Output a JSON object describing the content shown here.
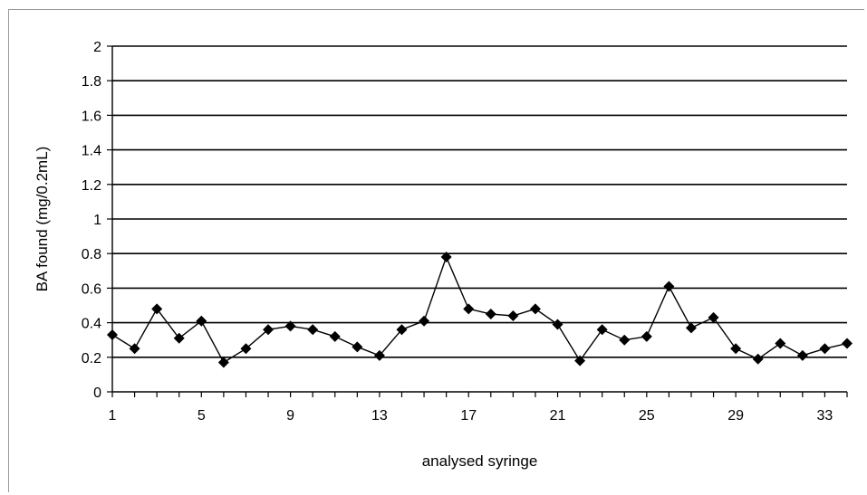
{
  "chart_data": {
    "type": "line",
    "title": "",
    "xlabel": "analysed syringe",
    "ylabel": "BA found (mg/0.2mL)",
    "ylim": [
      0,
      2
    ],
    "xlim": [
      1,
      34
    ],
    "grid": "horizontal",
    "yticks": [
      "0",
      "0.2",
      "0.4",
      "0.6",
      "0.8",
      "1",
      "1.2",
      "1.4",
      "1.6",
      "1.8",
      "2"
    ],
    "xticks": [
      "1",
      "5",
      "9",
      "13",
      "17",
      "21",
      "25",
      "29",
      "33"
    ],
    "marker": "diamond",
    "series_color": "#000000",
    "x": [
      1,
      2,
      3,
      4,
      5,
      6,
      7,
      8,
      9,
      10,
      11,
      12,
      13,
      14,
      15,
      16,
      17,
      18,
      19,
      20,
      21,
      22,
      23,
      24,
      25,
      26,
      27,
      28,
      29,
      30,
      31,
      32,
      33,
      34
    ],
    "series": [
      {
        "values": [
          0.33,
          0.25,
          0.48,
          0.31,
          0.41,
          0.17,
          0.25,
          0.36,
          0.38,
          0.36,
          0.32,
          0.26,
          0.21,
          0.36,
          0.41,
          0.78,
          0.48,
          0.45,
          0.44,
          0.48,
          0.39,
          0.18,
          0.36,
          0.3,
          0.32,
          0.61,
          0.37,
          0.43,
          0.25,
          0.19,
          0.28,
          0.21,
          0.25,
          0.28
        ]
      }
    ]
  }
}
